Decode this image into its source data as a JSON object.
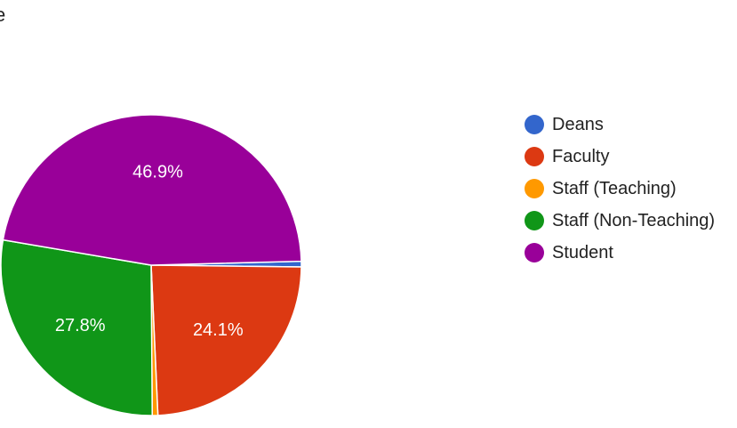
{
  "header": {
    "fragment": "e"
  },
  "chart_data": {
    "type": "pie",
    "labels": [
      "Deans",
      "Faculty",
      "Staff (Teaching)",
      "Staff (Non-Teaching)",
      "Student"
    ],
    "values": [
      0.6,
      24.1,
      0.6,
      27.8,
      46.9
    ],
    "value_labels": [
      "",
      "24.1%",
      "",
      "27.8%",
      "46.9%"
    ],
    "colors": [
      "#3366cc",
      "#dc3912",
      "#ff9900",
      "#109618",
      "#990099"
    ],
    "legend_position": "right"
  }
}
